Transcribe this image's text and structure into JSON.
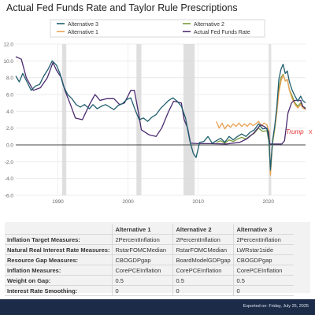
{
  "header": {
    "title": "Actual Fed Funds Rate and Taylor Rule Prescriptions"
  },
  "chart_data": {
    "type": "line",
    "title": "Actual Fed Funds Rate and Taylor Rule Prescriptions",
    "xlabel": "",
    "ylabel": "",
    "xlim": [
      1984,
      2025.3
    ],
    "ylim": [
      -6,
      12
    ],
    "x_ticks": [
      "1990",
      "2000",
      "2010",
      "2020"
    ],
    "y_ticks": [
      "-6.0",
      "-4.0",
      "-2.0",
      "0.0",
      "2.0",
      "4.0",
      "6.0",
      "8.0",
      "10.0",
      "12.0"
    ],
    "grid": true,
    "legend_position": "top",
    "recessions": [
      [
        1990.6,
        1991.2
      ],
      [
        2001.2,
        2001.9
      ],
      [
        2007.9,
        2009.5
      ],
      [
        2020.1,
        2020.4
      ]
    ],
    "annotation": {
      "text": "Trump",
      "marker": "X",
      "x": 2022.5,
      "y": 1.3,
      "color": "#e03030"
    },
    "legend": [
      {
        "label": "Alternative 3",
        "color": "#1f5e6e"
      },
      {
        "label": "Alternative 2",
        "color": "#7a9a3a"
      },
      {
        "label": "Alternative 1",
        "color": "#e8a050"
      },
      {
        "label": "Actual Fed Funds Rate",
        "color": "#4b2a70"
      }
    ],
    "series": [
      {
        "name": "Actual Fed Funds Rate",
        "color": "#4b2a70",
        "points": [
          [
            1984.0,
            10.5
          ],
          [
            1984.8,
            10.2
          ],
          [
            1985.5,
            8.0
          ],
          [
            1986.5,
            6.5
          ],
          [
            1987.5,
            6.8
          ],
          [
            1988.5,
            8.0
          ],
          [
            1989.3,
            9.8
          ],
          [
            1989.8,
            8.9
          ],
          [
            1990.5,
            8.0
          ],
          [
            1991.0,
            6.5
          ],
          [
            1991.8,
            4.8
          ],
          [
            1992.5,
            3.2
          ],
          [
            1993.5,
            3.0
          ],
          [
            1994.5,
            4.8
          ],
          [
            1995.3,
            6.0
          ],
          [
            1996.0,
            5.3
          ],
          [
            1997.0,
            5.5
          ],
          [
            1998.0,
            5.5
          ],
          [
            1998.8,
            4.8
          ],
          [
            1999.5,
            5.0
          ],
          [
            2000.4,
            6.5
          ],
          [
            2000.9,
            6.5
          ],
          [
            2001.5,
            3.8
          ],
          [
            2001.9,
            1.8
          ],
          [
            2003.0,
            1.2
          ],
          [
            2004.0,
            1.0
          ],
          [
            2004.8,
            2.0
          ],
          [
            2005.8,
            4.0
          ],
          [
            2006.5,
            5.2
          ],
          [
            2007.6,
            5.0
          ],
          [
            2008.0,
            3.0
          ],
          [
            2008.5,
            2.0
          ],
          [
            2008.9,
            0.2
          ],
          [
            2010.0,
            0.15
          ],
          [
            2012.0,
            0.15
          ],
          [
            2014.0,
            0.1
          ],
          [
            2015.9,
            0.3
          ],
          [
            2016.9,
            0.7
          ],
          [
            2017.9,
            1.4
          ],
          [
            2018.9,
            2.4
          ],
          [
            2019.6,
            2.1
          ],
          [
            2020.0,
            1.6
          ],
          [
            2020.2,
            0.1
          ],
          [
            2021.9,
            0.1
          ],
          [
            2022.3,
            0.5
          ],
          [
            2022.8,
            3.8
          ],
          [
            2023.3,
            5.0
          ],
          [
            2023.7,
            5.3
          ],
          [
            2024.6,
            5.3
          ],
          [
            2024.9,
            4.6
          ],
          [
            2025.3,
            4.3
          ]
        ]
      },
      {
        "name": "Alternative 3",
        "color": "#1f5e6e",
        "points": [
          [
            1984.0,
            8.2
          ],
          [
            1984.5,
            7.5
          ],
          [
            1985.0,
            8.5
          ],
          [
            1985.6,
            7.5
          ],
          [
            1986.2,
            6.5
          ],
          [
            1986.8,
            7.0
          ],
          [
            1987.4,
            7.2
          ],
          [
            1988.0,
            8.2
          ],
          [
            1988.6,
            9.0
          ],
          [
            1989.2,
            10.0
          ],
          [
            1989.8,
            9.5
          ],
          [
            1990.3,
            8.5
          ],
          [
            1990.8,
            7.0
          ],
          [
            1991.4,
            6.0
          ],
          [
            1992.0,
            5.5
          ],
          [
            1992.6,
            4.8
          ],
          [
            1993.2,
            4.5
          ],
          [
            1993.8,
            4.8
          ],
          [
            1994.5,
            4.3
          ],
          [
            1995.0,
            4.8
          ],
          [
            1995.6,
            4.3
          ],
          [
            1996.2,
            4.6
          ],
          [
            1996.8,
            4.8
          ],
          [
            1997.4,
            4.5
          ],
          [
            1998.0,
            4.2
          ],
          [
            1998.6,
            4.7
          ],
          [
            1999.2,
            4.9
          ],
          [
            1999.8,
            5.4
          ],
          [
            2000.4,
            5.6
          ],
          [
            2001.0,
            4.2
          ],
          [
            2001.6,
            3.0
          ],
          [
            2002.2,
            3.2
          ],
          [
            2002.8,
            2.8
          ],
          [
            2003.4,
            3.3
          ],
          [
            2004.0,
            3.6
          ],
          [
            2004.6,
            4.3
          ],
          [
            2005.2,
            4.8
          ],
          [
            2005.8,
            5.3
          ],
          [
            2006.4,
            5.6
          ],
          [
            2007.0,
            5.2
          ],
          [
            2007.6,
            4.6
          ],
          [
            2008.2,
            3.2
          ],
          [
            2008.8,
            0.5
          ],
          [
            2009.3,
            -1.0
          ],
          [
            2009.7,
            -1.5
          ],
          [
            2010.2,
            0.3
          ],
          [
            2010.8,
            0.4
          ],
          [
            2011.4,
            1.0
          ],
          [
            2012.0,
            0.2
          ],
          [
            2012.6,
            0.5
          ],
          [
            2013.2,
            0.8
          ],
          [
            2013.8,
            0.3
          ],
          [
            2014.4,
            1.0
          ],
          [
            2015.0,
            0.6
          ],
          [
            2015.6,
            1.0
          ],
          [
            2016.2,
            1.3
          ],
          [
            2016.8,
            1.0
          ],
          [
            2017.4,
            1.5
          ],
          [
            2018.0,
            1.8
          ],
          [
            2018.6,
            2.5
          ],
          [
            2019.2,
            1.9
          ],
          [
            2019.8,
            2.0
          ],
          [
            2020.1,
            0.5
          ],
          [
            2020.3,
            -3.0
          ],
          [
            2020.6,
            0.5
          ],
          [
            2020.9,
            2.2
          ],
          [
            2021.2,
            4.5
          ],
          [
            2021.5,
            7.8
          ],
          [
            2021.8,
            9.0
          ],
          [
            2022.1,
            9.6
          ],
          [
            2022.4,
            8.5
          ],
          [
            2022.7,
            8.8
          ],
          [
            2023.0,
            7.5
          ],
          [
            2023.4,
            6.5
          ],
          [
            2023.8,
            5.8
          ],
          [
            2024.2,
            5.2
          ],
          [
            2024.6,
            5.8
          ],
          [
            2024.9,
            5.3
          ],
          [
            2025.3,
            5.0
          ]
        ]
      },
      {
        "name": "Alternative 2",
        "color": "#7a9a3a",
        "points": [
          [
            2012.6,
            0.3
          ],
          [
            2013.2,
            0.5
          ],
          [
            2013.8,
            0.2
          ],
          [
            2014.4,
            0.6
          ],
          [
            2015.0,
            0.4
          ],
          [
            2015.6,
            0.7
          ],
          [
            2016.2,
            0.9
          ],
          [
            2016.8,
            0.7
          ],
          [
            2017.4,
            1.1
          ],
          [
            2018.0,
            1.4
          ],
          [
            2018.6,
            2.0
          ],
          [
            2019.2,
            1.6
          ],
          [
            2019.8,
            1.7
          ],
          [
            2020.1,
            0.2
          ],
          [
            2020.3,
            -3.3
          ],
          [
            2020.6,
            0.2
          ],
          [
            2020.9,
            1.8
          ],
          [
            2021.2,
            3.9
          ],
          [
            2021.5,
            6.6
          ],
          [
            2021.8,
            8.0
          ],
          [
            2022.1,
            8.4
          ],
          [
            2022.4,
            7.6
          ],
          [
            2022.7,
            7.8
          ],
          [
            2023.0,
            6.6
          ],
          [
            2023.4,
            5.8
          ],
          [
            2023.8,
            5.0
          ],
          [
            2024.2,
            4.6
          ],
          [
            2024.6,
            5.0
          ],
          [
            2024.9,
            4.6
          ],
          [
            2025.3,
            4.4
          ]
        ]
      },
      {
        "name": "Alternative 1",
        "color": "#e8a050",
        "points": [
          [
            2012.6,
            2.8
          ],
          [
            2013.0,
            2.0
          ],
          [
            2013.4,
            2.6
          ],
          [
            2013.8,
            1.9
          ],
          [
            2014.2,
            2.4
          ],
          [
            2014.6,
            2.1
          ],
          [
            2015.0,
            2.5
          ],
          [
            2015.4,
            2.2
          ],
          [
            2015.8,
            2.6
          ],
          [
            2016.2,
            2.2
          ],
          [
            2016.6,
            2.5
          ],
          [
            2017.0,
            2.2
          ],
          [
            2017.4,
            2.6
          ],
          [
            2017.8,
            2.3
          ],
          [
            2018.2,
            2.5
          ],
          [
            2018.6,
            2.8
          ],
          [
            2019.0,
            2.3
          ],
          [
            2019.4,
            2.6
          ],
          [
            2019.8,
            2.4
          ],
          [
            2020.1,
            1.5
          ],
          [
            2020.3,
            -3.6
          ],
          [
            2020.6,
            0.4
          ],
          [
            2020.9,
            2.0
          ],
          [
            2021.2,
            3.8
          ],
          [
            2021.5,
            6.2
          ],
          [
            2021.8,
            7.6
          ],
          [
            2022.1,
            8.3
          ],
          [
            2022.4,
            7.6
          ],
          [
            2022.7,
            7.8
          ],
          [
            2023.0,
            6.5
          ],
          [
            2023.4,
            5.5
          ],
          [
            2023.8,
            4.8
          ],
          [
            2024.2,
            4.4
          ],
          [
            2024.6,
            4.8
          ],
          [
            2024.9,
            4.4
          ],
          [
            2025.3,
            4.2
          ]
        ]
      }
    ]
  },
  "params_table": {
    "columns": [
      "Alternative 1",
      "Alternative 2",
      "Alternative 3"
    ],
    "rows": [
      {
        "label": "Inflation Target Measures:",
        "values": [
          "2PercentInflation",
          "2PercentInflation",
          "2PercentInflation"
        ]
      },
      {
        "label": "Natural Real Interest Rate Measures:",
        "values": [
          "RstarFOMCMedian",
          "RstarFOMCMedian",
          "LWRstar1side"
        ]
      },
      {
        "label": "Resource Gap Measures:",
        "values": [
          "CBOGDPgap",
          "BoardModelGDPgap",
          "CBOGDPgap"
        ]
      },
      {
        "label": "Inflation Measures:",
        "values": [
          "CorePCEInflation",
          "CorePCEInflation",
          "CorePCEInflation"
        ]
      },
      {
        "label": "Weight on Gap:",
        "values": [
          "0.5",
          "0.5",
          "0.5"
        ]
      },
      {
        "label": "Interest Rate Smoothing:",
        "values": [
          "0",
          "0",
          "0"
        ]
      }
    ]
  },
  "footer": {
    "exported": "Exported on: Friday, July 25, 2025"
  }
}
